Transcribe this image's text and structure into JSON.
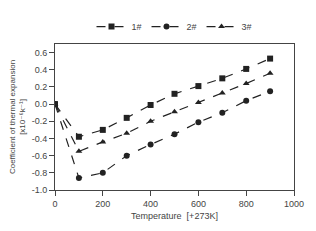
{
  "chart_data": {
    "type": "line",
    "xlabel": "Temperature  [+273K]",
    "ylabel": "Coefficient of thermal expansion\n[x10⁻⁶k⁻¹]",
    "xlim": [
      0,
      1000
    ],
    "ylim": [
      -1.0,
      0.7
    ],
    "xticks": [
      0,
      200,
      400,
      600,
      800,
      1000
    ],
    "yticks": [
      {
        "value": -1.0,
        "label": "-1.0"
      },
      -0.8,
      -0.6,
      -0.4,
      -0.2,
      {
        "value": 0.0,
        "label": "0.0"
      },
      0.2,
      0.4,
      0.6
    ],
    "x": [
      0,
      100,
      200,
      300,
      400,
      500,
      600,
      700,
      800,
      900
    ],
    "series": [
      {
        "name": "1#",
        "color": "#222222",
        "marker": "square",
        "line_style": "dash",
        "values": [
          0.0,
          -0.38,
          -0.3,
          -0.16,
          -0.01,
          0.12,
          0.21,
          0.3,
          0.41,
          0.53
        ]
      },
      {
        "name": "2#",
        "color": "#222222",
        "marker": "circle",
        "line_style": "dash",
        "values": [
          0.0,
          -0.86,
          -0.8,
          -0.6,
          -0.47,
          -0.35,
          -0.21,
          -0.1,
          0.04,
          0.15
        ]
      },
      {
        "name": "3#",
        "color": "#222222",
        "marker": "triangle-up",
        "line_style": "dash",
        "values": [
          0.0,
          -0.55,
          -0.44,
          -0.34,
          -0.2,
          -0.09,
          0.02,
          0.13,
          0.24,
          0.36
        ]
      }
    ],
    "legend": "upper center",
    "grid": false
  }
}
